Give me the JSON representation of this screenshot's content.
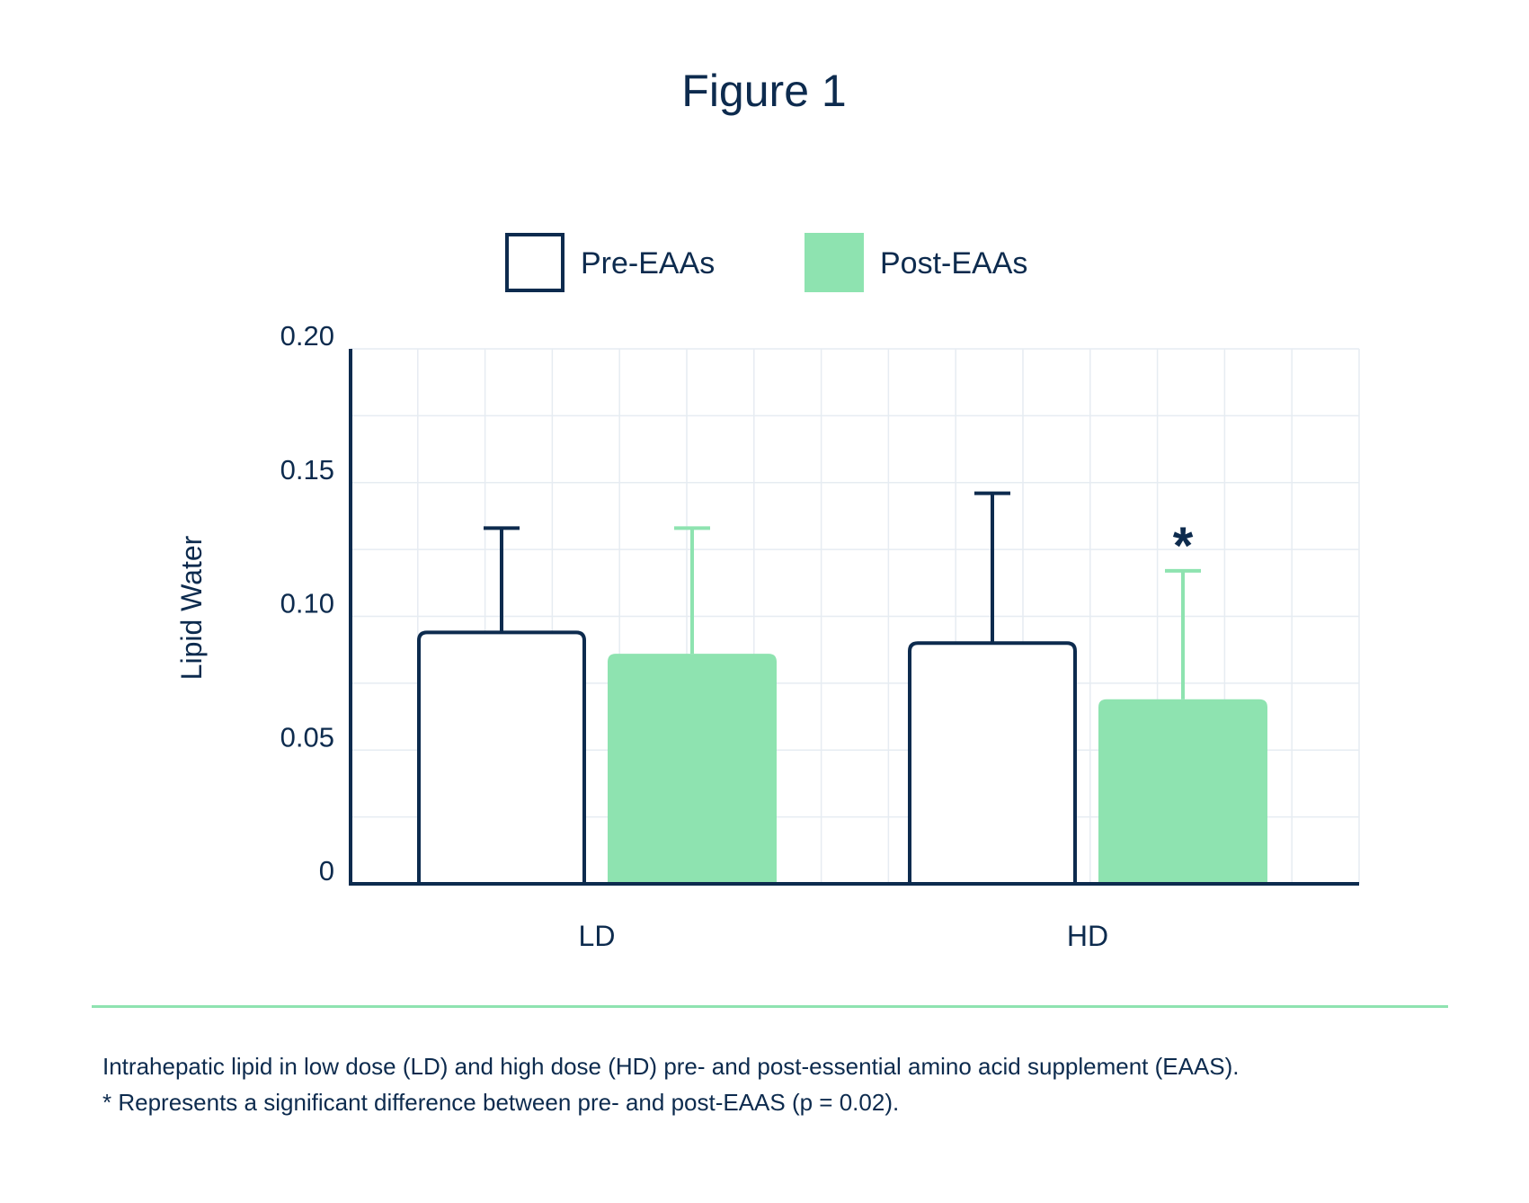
{
  "chart_data": {
    "type": "bar",
    "title": "Figure 1",
    "ylabel": "Lipid Water",
    "xlabel": "",
    "ylim": [
      0,
      0.2
    ],
    "yticks": [
      "0",
      "0.05",
      "0.10",
      "0.15",
      "0.20"
    ],
    "ytick_values": [
      0,
      0.05,
      0.1,
      0.15,
      0.2
    ],
    "categories": [
      "LD",
      "HD"
    ],
    "grid": true,
    "legend_position": "top-center",
    "series": [
      {
        "name": "Pre-EAAs",
        "values": [
          0.094,
          0.09
        ],
        "error_upper": [
          0.133,
          0.146
        ],
        "style": "outline",
        "color": "#0d2b4e"
      },
      {
        "name": "Post-EAAs",
        "values": [
          0.086,
          0.069
        ],
        "error_upper": [
          0.133,
          0.117
        ],
        "style": "filled",
        "color": "#8ee3b0"
      }
    ],
    "annotations": [
      {
        "text": "*",
        "series": "Post-EAAs",
        "category": "HD"
      }
    ]
  },
  "caption": {
    "line1": "Intrahepatic lipid in low dose (LD) and high dose (HD) pre- and post-essential amino acid supplement (EAAS).",
    "line2": "* Represents a significant difference between pre- and post-EAAS (p = 0.02)."
  },
  "colors": {
    "text": "#0d2b4e",
    "accent": "#8ee3b0",
    "grid": "#e6ecf2"
  }
}
